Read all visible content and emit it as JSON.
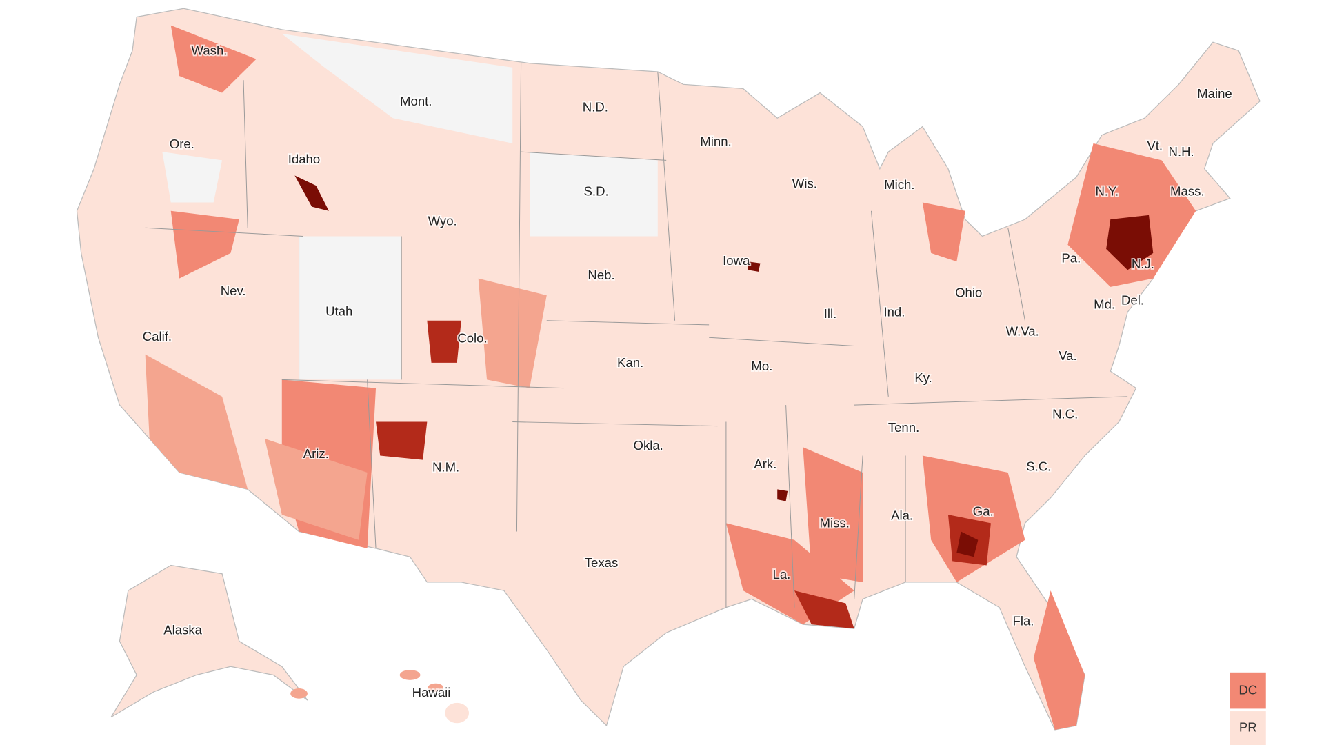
{
  "states": [
    "Wash.",
    "Mont.",
    "N.D.",
    "Minn.",
    "Maine",
    "Ore.",
    "Idaho",
    "Wis.",
    "Mich.",
    "Vt.",
    "N.H.",
    "S.D.",
    "Wyo.",
    "N.Y.",
    "Mass.",
    "Pa.",
    "N.J.",
    "Iowa",
    "Neb.",
    "Nev.",
    "Utah",
    "Ohio",
    "Md.",
    "Del.",
    "Ill.",
    "Ind.",
    "Calif.",
    "Colo.",
    "W.Va.",
    "Kan.",
    "Mo.",
    "Va.",
    "Ky.",
    "N.C.",
    "Tenn.",
    "Okla.",
    "Ariz.",
    "Ark.",
    "N.M.",
    "S.C.",
    "Miss.",
    "Ala.",
    "Ga.",
    "Texas",
    "La.",
    "Fla.",
    "Alaska",
    "Hawaii"
  ],
  "territories": [
    "DC",
    "PR"
  ]
}
